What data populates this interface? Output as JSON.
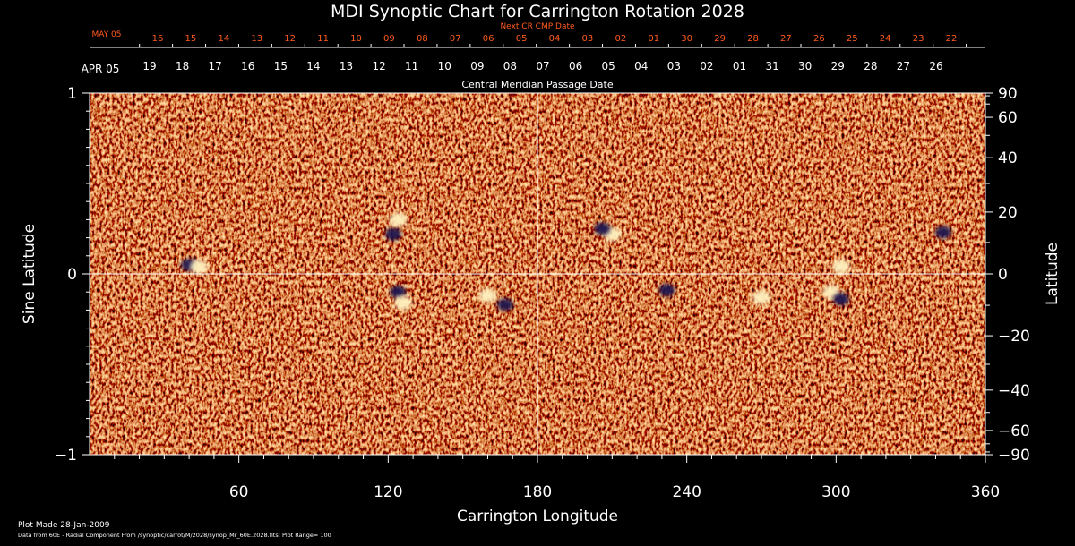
{
  "chart_data": {
    "type": "heatmap",
    "title": "MDI Synoptic Chart for Carrington Rotation 2028",
    "next_cr_label": "Next CR CMP Date",
    "next_cr_month": "MAY 05",
    "next_cr_dates": [
      "16",
      "15",
      "14",
      "13",
      "12",
      "11",
      "10",
      "09",
      "08",
      "07",
      "06",
      "05",
      "04",
      "03",
      "02",
      "01",
      "30",
      "29",
      "28",
      "27",
      "26",
      "25",
      "24",
      "23",
      "22"
    ],
    "cmp_month": "APR 05",
    "cmp_dates": [
      "19",
      "18",
      "17",
      "16",
      "15",
      "14",
      "13",
      "12",
      "11",
      "10",
      "09",
      "08",
      "07",
      "06",
      "05",
      "04",
      "03",
      "02",
      "01",
      "31",
      "30",
      "29",
      "28",
      "27",
      "26"
    ],
    "cmp_label": "Central Meridian Passage Date",
    "xlabel": "Carrington Longitude",
    "xlim": [
      0,
      360
    ],
    "xticks": [
      60,
      120,
      180,
      240,
      300,
      360
    ],
    "ylabel_left": "Sine Latitude",
    "ylim": [
      -1,
      1
    ],
    "yticks_left": [
      1,
      0,
      -1
    ],
    "ytick_labels_left": [
      "1",
      "0",
      "−1"
    ],
    "ylabel_right": "Latitude",
    "yticks_right": [
      90,
      60,
      40,
      20,
      0,
      -20,
      -40,
      -60,
      -90
    ],
    "ytick_labels_right": [
      "90",
      "60",
      "40",
      "20",
      "0",
      "−20",
      "−40",
      "−60",
      "−90"
    ],
    "crosshair": {
      "longitude": 180,
      "sine_latitude": 0
    },
    "colors": {
      "background": "#000000",
      "field": "#d9481a",
      "positive": "#fff2c0",
      "negative": "#1b1450",
      "orange_text": "#ff5a1e"
    },
    "footer_line1": "Plot Made 28-Jan-2009",
    "footer_line2": "Data from 60E - Radial Component From /synoptic/carrot/M/2028/synop_Mr_60E.2028.fits; Plot Range=  100",
    "regions": [
      {
        "lon": 40,
        "lat": 0.05,
        "polarity": "negative"
      },
      {
        "lon": 44,
        "lat": 0.04,
        "polarity": "positive"
      },
      {
        "lon": 122,
        "lat": 0.22,
        "polarity": "negative"
      },
      {
        "lon": 124,
        "lat": 0.3,
        "polarity": "positive"
      },
      {
        "lon": 124,
        "lat": -0.1,
        "polarity": "negative"
      },
      {
        "lon": 126,
        "lat": -0.16,
        "polarity": "positive"
      },
      {
        "lon": 160,
        "lat": -0.12,
        "polarity": "positive"
      },
      {
        "lon": 167,
        "lat": -0.17,
        "polarity": "negative"
      },
      {
        "lon": 210,
        "lat": 0.22,
        "polarity": "positive"
      },
      {
        "lon": 206,
        "lat": 0.25,
        "polarity": "negative"
      },
      {
        "lon": 232,
        "lat": -0.09,
        "polarity": "negative"
      },
      {
        "lon": 270,
        "lat": -0.13,
        "polarity": "positive"
      },
      {
        "lon": 298,
        "lat": -0.1,
        "polarity": "positive"
      },
      {
        "lon": 302,
        "lat": -0.14,
        "polarity": "negative"
      },
      {
        "lon": 302,
        "lat": 0.04,
        "polarity": "positive"
      },
      {
        "lon": 343,
        "lat": 0.23,
        "polarity": "negative"
      }
    ]
  }
}
